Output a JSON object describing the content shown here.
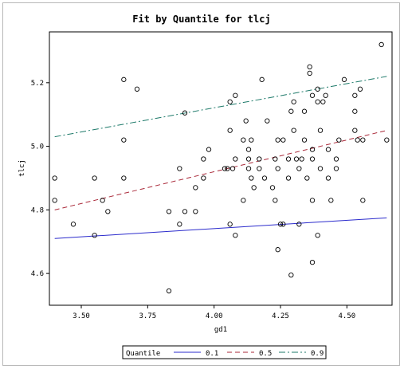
{
  "chart_data": {
    "type": "scatter",
    "title": "Fit by Quantile for tlcj",
    "xlabel": "gd1",
    "ylabel": "tlcj",
    "xlim": [
      3.38,
      4.67
    ],
    "ylim": [
      4.5,
      5.36
    ],
    "x_ticks": [
      3.5,
      3.75,
      4.0,
      4.25,
      4.5
    ],
    "x_tick_labels": [
      "3.50",
      "3.75",
      "4.00",
      "4.25",
      "4.50"
    ],
    "y_ticks": [
      4.6,
      4.8,
      5.0,
      5.2
    ],
    "y_tick_labels": [
      "4.6",
      "4.8",
      "5.0",
      "5.2"
    ],
    "grid": false,
    "legend": {
      "title": "Quantile",
      "placement": "bottom",
      "entries": [
        {
          "label": "0.1",
          "color": "#2b2bcc",
          "dash": "solid"
        },
        {
          "label": "0.5",
          "color": "#aa2a3a",
          "dash": "dashed"
        },
        {
          "label": "0.9",
          "color": "#1e7a6a",
          "dash": "dashdot"
        }
      ]
    },
    "fit_lines": [
      {
        "quantile": "0.1",
        "x": [
          3.4,
          4.65
        ],
        "y": [
          4.71,
          4.775
        ]
      },
      {
        "quantile": "0.5",
        "x": [
          3.4,
          4.65
        ],
        "y": [
          4.8,
          5.05
        ]
      },
      {
        "quantile": "0.9",
        "x": [
          3.4,
          4.65
        ],
        "y": [
          5.03,
          5.22
        ]
      }
    ],
    "points": [
      [
        3.4,
        4.9
      ],
      [
        3.4,
        4.83
      ],
      [
        3.47,
        4.755
      ],
      [
        3.55,
        4.72
      ],
      [
        3.55,
        4.9
      ],
      [
        3.58,
        4.83
      ],
      [
        3.6,
        4.795
      ],
      [
        3.66,
        5.21
      ],
      [
        3.66,
        5.02
      ],
      [
        3.66,
        4.9
      ],
      [
        3.71,
        5.18
      ],
      [
        3.83,
        4.545
      ],
      [
        3.83,
        4.795
      ],
      [
        3.87,
        4.93
      ],
      [
        3.87,
        4.755
      ],
      [
        3.89,
        5.105
      ],
      [
        3.89,
        4.795
      ],
      [
        3.93,
        4.795
      ],
      [
        3.93,
        4.87
      ],
      [
        3.96,
        4.9
      ],
      [
        3.96,
        4.96
      ],
      [
        3.98,
        4.99
      ],
      [
        4.04,
        4.93
      ],
      [
        4.05,
        4.93
      ],
      [
        4.06,
        5.14
      ],
      [
        4.06,
        5.05
      ],
      [
        4.06,
        4.755
      ],
      [
        4.07,
        4.93
      ],
      [
        4.08,
        5.16
      ],
      [
        4.08,
        4.96
      ],
      [
        4.08,
        4.72
      ],
      [
        4.11,
        5.02
      ],
      [
        4.11,
        4.83
      ],
      [
        4.12,
        5.08
      ],
      [
        4.13,
        4.99
      ],
      [
        4.13,
        4.93
      ],
      [
        4.13,
        4.96
      ],
      [
        4.14,
        5.02
      ],
      [
        4.14,
        4.9
      ],
      [
        4.15,
        4.87
      ],
      [
        4.17,
        4.93
      ],
      [
        4.17,
        4.96
      ],
      [
        4.18,
        5.21
      ],
      [
        4.19,
        4.9
      ],
      [
        4.2,
        5.08
      ],
      [
        4.22,
        4.87
      ],
      [
        4.23,
        4.96
      ],
      [
        4.23,
        4.83
      ],
      [
        4.24,
        4.93
      ],
      [
        4.24,
        5.02
      ],
      [
        4.24,
        4.675
      ],
      [
        4.25,
        4.755
      ],
      [
        4.26,
        5.02
      ],
      [
        4.26,
        4.755
      ],
      [
        4.28,
        4.96
      ],
      [
        4.28,
        4.9
      ],
      [
        4.29,
        5.11
      ],
      [
        4.29,
        4.595
      ],
      [
        4.3,
        5.14
      ],
      [
        4.3,
        5.05
      ],
      [
        4.31,
        4.96
      ],
      [
        4.32,
        4.755
      ],
      [
        4.32,
        4.93
      ],
      [
        4.33,
        4.96
      ],
      [
        4.34,
        5.02
      ],
      [
        4.34,
        5.11
      ],
      [
        4.35,
        4.9
      ],
      [
        4.36,
        5.25
      ],
      [
        4.36,
        5.23
      ],
      [
        4.37,
        5.16
      ],
      [
        4.37,
        4.99
      ],
      [
        4.37,
        4.96
      ],
      [
        4.37,
        4.83
      ],
      [
        4.37,
        4.635
      ],
      [
        4.39,
        5.18
      ],
      [
        4.39,
        5.14
      ],
      [
        4.39,
        4.72
      ],
      [
        4.4,
        5.05
      ],
      [
        4.4,
        4.93
      ],
      [
        4.41,
        5.14
      ],
      [
        4.42,
        5.16
      ],
      [
        4.43,
        4.99
      ],
      [
        4.43,
        4.9
      ],
      [
        4.44,
        4.83
      ],
      [
        4.46,
        4.96
      ],
      [
        4.46,
        4.93
      ],
      [
        4.47,
        5.02
      ],
      [
        4.49,
        5.21
      ],
      [
        4.53,
        5.16
      ],
      [
        4.53,
        5.11
      ],
      [
        4.53,
        5.05
      ],
      [
        4.54,
        5.02
      ],
      [
        4.55,
        5.18
      ],
      [
        4.56,
        4.83
      ],
      [
        4.56,
        5.02
      ],
      [
        4.63,
        5.32
      ],
      [
        4.65,
        5.02
      ]
    ]
  }
}
